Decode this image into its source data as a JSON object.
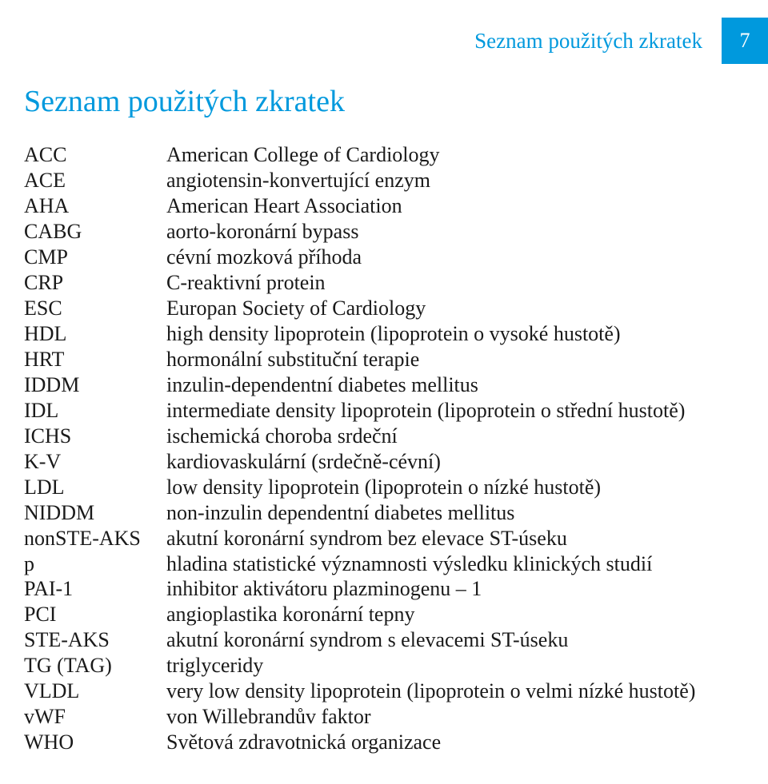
{
  "header": {
    "label": "Seznam použitých zkratek",
    "page_number": "7"
  },
  "title": "Seznam použitých zkratek",
  "colors": {
    "accent": "#0099dd",
    "text": "#1a1a1a",
    "background": "#ffffff",
    "page_number_text": "#ffffff"
  },
  "typography": {
    "font_family": "Times New Roman",
    "title_fontsize": 38,
    "header_label_fontsize": 27,
    "body_fontsize": 26,
    "page_number_fontsize": 26
  },
  "abbreviations": [
    {
      "key": "ACC",
      "value": "American College of Cardiology"
    },
    {
      "key": "ACE",
      "value": "angiotensin-konvertující enzym"
    },
    {
      "key": "AHA",
      "value": "American Heart Association"
    },
    {
      "key": "CABG",
      "value": "aorto-koronární bypass"
    },
    {
      "key": "CMP",
      "value": "cévní mozková příhoda"
    },
    {
      "key": "CRP",
      "value": "C-reaktivní protein"
    },
    {
      "key": "ESC",
      "value": "Europan Society of Cardiology"
    },
    {
      "key": "HDL",
      "value": "high density lipoprotein (lipoprotein o vysoké hustotě)"
    },
    {
      "key": "HRT",
      "value": "hormonální substituční terapie"
    },
    {
      "key": "IDDM",
      "value": "inzulin-dependentní diabetes mellitus"
    },
    {
      "key": "IDL",
      "value": "intermediate density lipoprotein (lipoprotein o střední hustotě)"
    },
    {
      "key": "ICHS",
      "value": "ischemická choroba srdeční"
    },
    {
      "key": "K-V",
      "value": "kardiovaskulární (srdečně-cévní)"
    },
    {
      "key": "LDL",
      "value": "low density lipoprotein (lipoprotein o nízké hustotě)"
    },
    {
      "key": "NIDDM",
      "value": "non-inzulin dependentní diabetes mellitus"
    },
    {
      "key": "nonSTE-AKS",
      "value": "akutní koronární syndrom bez elevace ST-úseku"
    },
    {
      "key": "p",
      "value": "hladina statistické významnosti výsledku klinických studií"
    },
    {
      "key": "PAI-1",
      "value": "inhibitor aktivátoru plazminogenu – 1"
    },
    {
      "key": "PCI",
      "value": "angioplastika koronární tepny"
    },
    {
      "key": "STE-AKS",
      "value": "akutní koronární syndrom s elevacemi ST-úseku"
    },
    {
      "key": "TG (TAG)",
      "value": "triglyceridy"
    },
    {
      "key": "VLDL",
      "value": "very low density lipoprotein (lipoprotein o velmi nízké hustotě)"
    },
    {
      "key": "vWF",
      "value": "von Willebrandův faktor"
    },
    {
      "key": "WHO",
      "value": "Světová zdravotnická organizace"
    }
  ]
}
